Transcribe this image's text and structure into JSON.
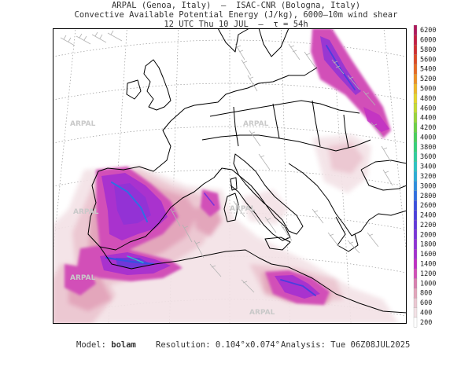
{
  "header": {
    "line1": "ARPAL (Genoa, Italy)  —  ISAC-CNR (Bologna, Italy)",
    "line2": "Convective Available Potential Energy (J/kg), 6000–10m wind shear",
    "line3": "12 UTC Thu 10 JUL  –  τ = 54h"
  },
  "watermark": "ARPAL",
  "legend": {
    "levels": [
      200,
      400,
      600,
      800,
      1000,
      1200,
      1400,
      1600,
      1800,
      2000,
      2200,
      2400,
      2600,
      2800,
      3000,
      3200,
      3400,
      3600,
      3800,
      4000,
      4200,
      4400,
      4600,
      4800,
      5000,
      5200,
      5400,
      5600,
      5800,
      6000,
      6200
    ],
    "colors": [
      "#ffffff",
      "#f3e2e6",
      "#ecc8d2",
      "#e3a6bb",
      "#d97fb0",
      "#d24fb8",
      "#c02ec4",
      "#a42fd0",
      "#8f32d6",
      "#7a34da",
      "#6238dc",
      "#4a3fde",
      "#3a4fe0",
      "#2f6fe3",
      "#2b8fe0",
      "#2aaed8",
      "#2bc4c4",
      "#2fcf9e",
      "#34d27a",
      "#48d15a",
      "#6cd244",
      "#98d63a",
      "#c4dc32",
      "#e6d72c",
      "#f0b827",
      "#ef9023",
      "#e86a22",
      "#de4a24",
      "#d12f30",
      "#c41d44",
      "#b0185c"
    ]
  },
  "footer": {
    "model_label": "Model:",
    "model_value": "bolam",
    "resolution_label": "Resolution:",
    "resolution_value": "0.104°x0.074°",
    "analysis_label": "Analysis:",
    "analysis_value": "Tue 06Z08JUL2025"
  }
}
